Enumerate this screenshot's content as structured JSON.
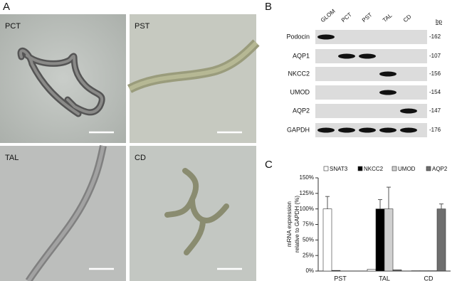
{
  "panel_a": {
    "label": "A",
    "images": [
      {
        "label": "PCT"
      },
      {
        "label": "PST"
      },
      {
        "label": "TAL"
      },
      {
        "label": "CD"
      }
    ]
  },
  "panel_b": {
    "label": "B",
    "lanes": [
      "GLOM",
      "PCT",
      "PST",
      "TAL",
      "CD"
    ],
    "bp_header": "bp",
    "rows": [
      {
        "name": "Podocin",
        "bp": "-162"
      },
      {
        "name": "AQP1",
        "bp": "-107"
      },
      {
        "name": "NKCC2",
        "bp": "-156"
      },
      {
        "name": "UMOD",
        "bp": "-154"
      },
      {
        "name": "AQP2",
        "bp": "-147"
      },
      {
        "name": "GAPDH",
        "bp": "-176"
      }
    ]
  },
  "chart_data": {
    "type": "bar",
    "panel_label": "C",
    "ylabel": [
      "mRNA expression",
      "relative to GAPDH  (%)"
    ],
    "categories": [
      "PST",
      "TAL",
      "CD"
    ],
    "series": [
      {
        "name": "SNAT3",
        "color": "#ffffff",
        "values": [
          100,
          3,
          0.5
        ],
        "errors": [
          20,
          0,
          0
        ]
      },
      {
        "name": "NKCC2",
        "color": "#000000",
        "values": [
          1,
          100,
          0.5
        ],
        "errors": [
          0,
          15,
          0
        ]
      },
      {
        "name": "UMOD",
        "color": "#d0d0d0",
        "values": [
          0,
          100,
          0.5
        ],
        "errors": [
          0,
          35,
          0
        ]
      },
      {
        "name": "AQP2",
        "color": "#6e6e6e",
        "values": [
          0,
          2,
          100
        ],
        "errors": [
          0,
          0,
          8
        ]
      }
    ],
    "ylim": [
      0,
      150
    ],
    "yticks": [
      {
        "value": 0,
        "label": "0%"
      },
      {
        "value": 25,
        "label": "25%"
      },
      {
        "value": 50,
        "label": "50%"
      },
      {
        "value": 75,
        "label": "75%"
      },
      {
        "value": 100,
        "label": "100%"
      },
      {
        "value": 125,
        "label": "125%"
      },
      {
        "value": 150,
        "label": "150%"
      }
    ]
  }
}
